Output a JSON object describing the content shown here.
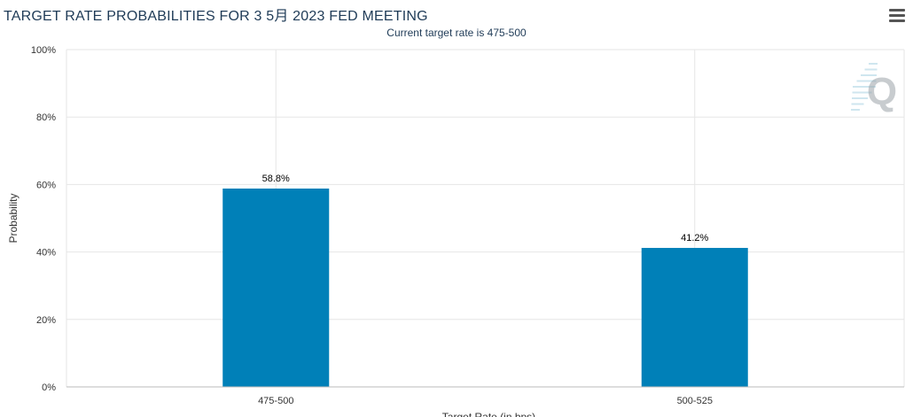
{
  "header": {
    "title": "TARGET RATE PROBABILITIES FOR 3 5月 2023 FED MEETING",
    "subtitle": "Current target rate is 475-500"
  },
  "toolbar": {
    "menu_icon": "hamburger-menu-icon"
  },
  "watermark": {
    "text": "Q",
    "color": "#9aa3a8"
  },
  "colors": {
    "bar": "#0080b8",
    "grid": "#e6e6e6",
    "axis_text": "#333333",
    "title": "#1f3b57"
  },
  "chart_data": {
    "type": "bar",
    "title": "TARGET RATE PROBABILITIES FOR 3 5月 2023 FED MEETING",
    "subtitle": "Current target rate is 475-500",
    "categories": [
      "475-500",
      "500-525"
    ],
    "values": [
      58.8,
      41.2
    ],
    "data_labels": [
      "58.8%",
      "41.2%"
    ],
    "xlabel": "Target Rate (in bps)",
    "ylabel": "Probability",
    "ylim": [
      0,
      100
    ],
    "yticks": [
      0,
      20,
      40,
      60,
      80,
      100
    ],
    "ytick_labels": [
      "0%",
      "20%",
      "40%",
      "60%",
      "80%",
      "100%"
    ],
    "grid": true,
    "legend": "none"
  }
}
